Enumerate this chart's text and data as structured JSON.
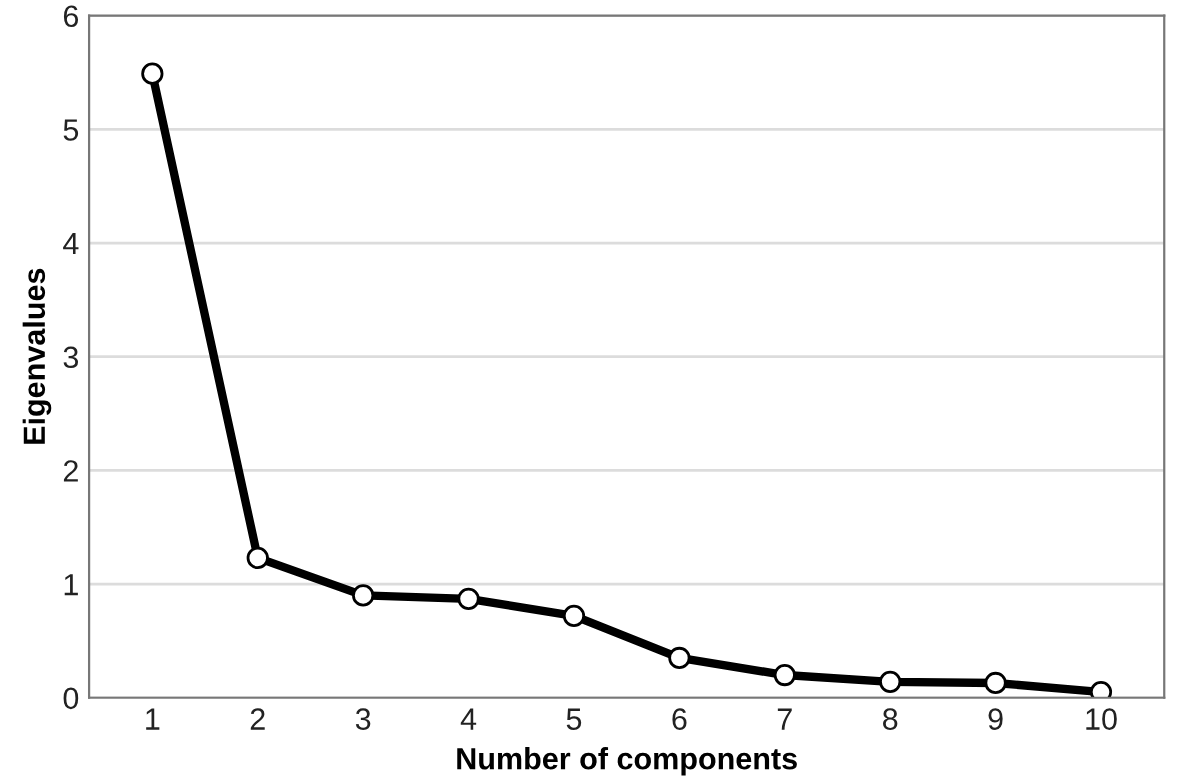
{
  "chart_data": {
    "type": "line",
    "xlabel": "Number of components",
    "ylabel": "Eigenvalues",
    "categories": [
      "1",
      "2",
      "3",
      "4",
      "5",
      "6",
      "7",
      "8",
      "9",
      "10"
    ],
    "series": [
      {
        "color": "#000000",
        "values": [
          5.49,
          1.23,
          0.9,
          0.87,
          0.72,
          0.35,
          0.2,
          0.14,
          0.13,
          0.05
        ]
      }
    ],
    "ylim": [
      0,
      6
    ],
    "yticks": [
      0,
      1,
      2,
      3,
      4,
      5,
      6
    ],
    "grid": "y",
    "marker": "circle",
    "line_style": "solid"
  }
}
